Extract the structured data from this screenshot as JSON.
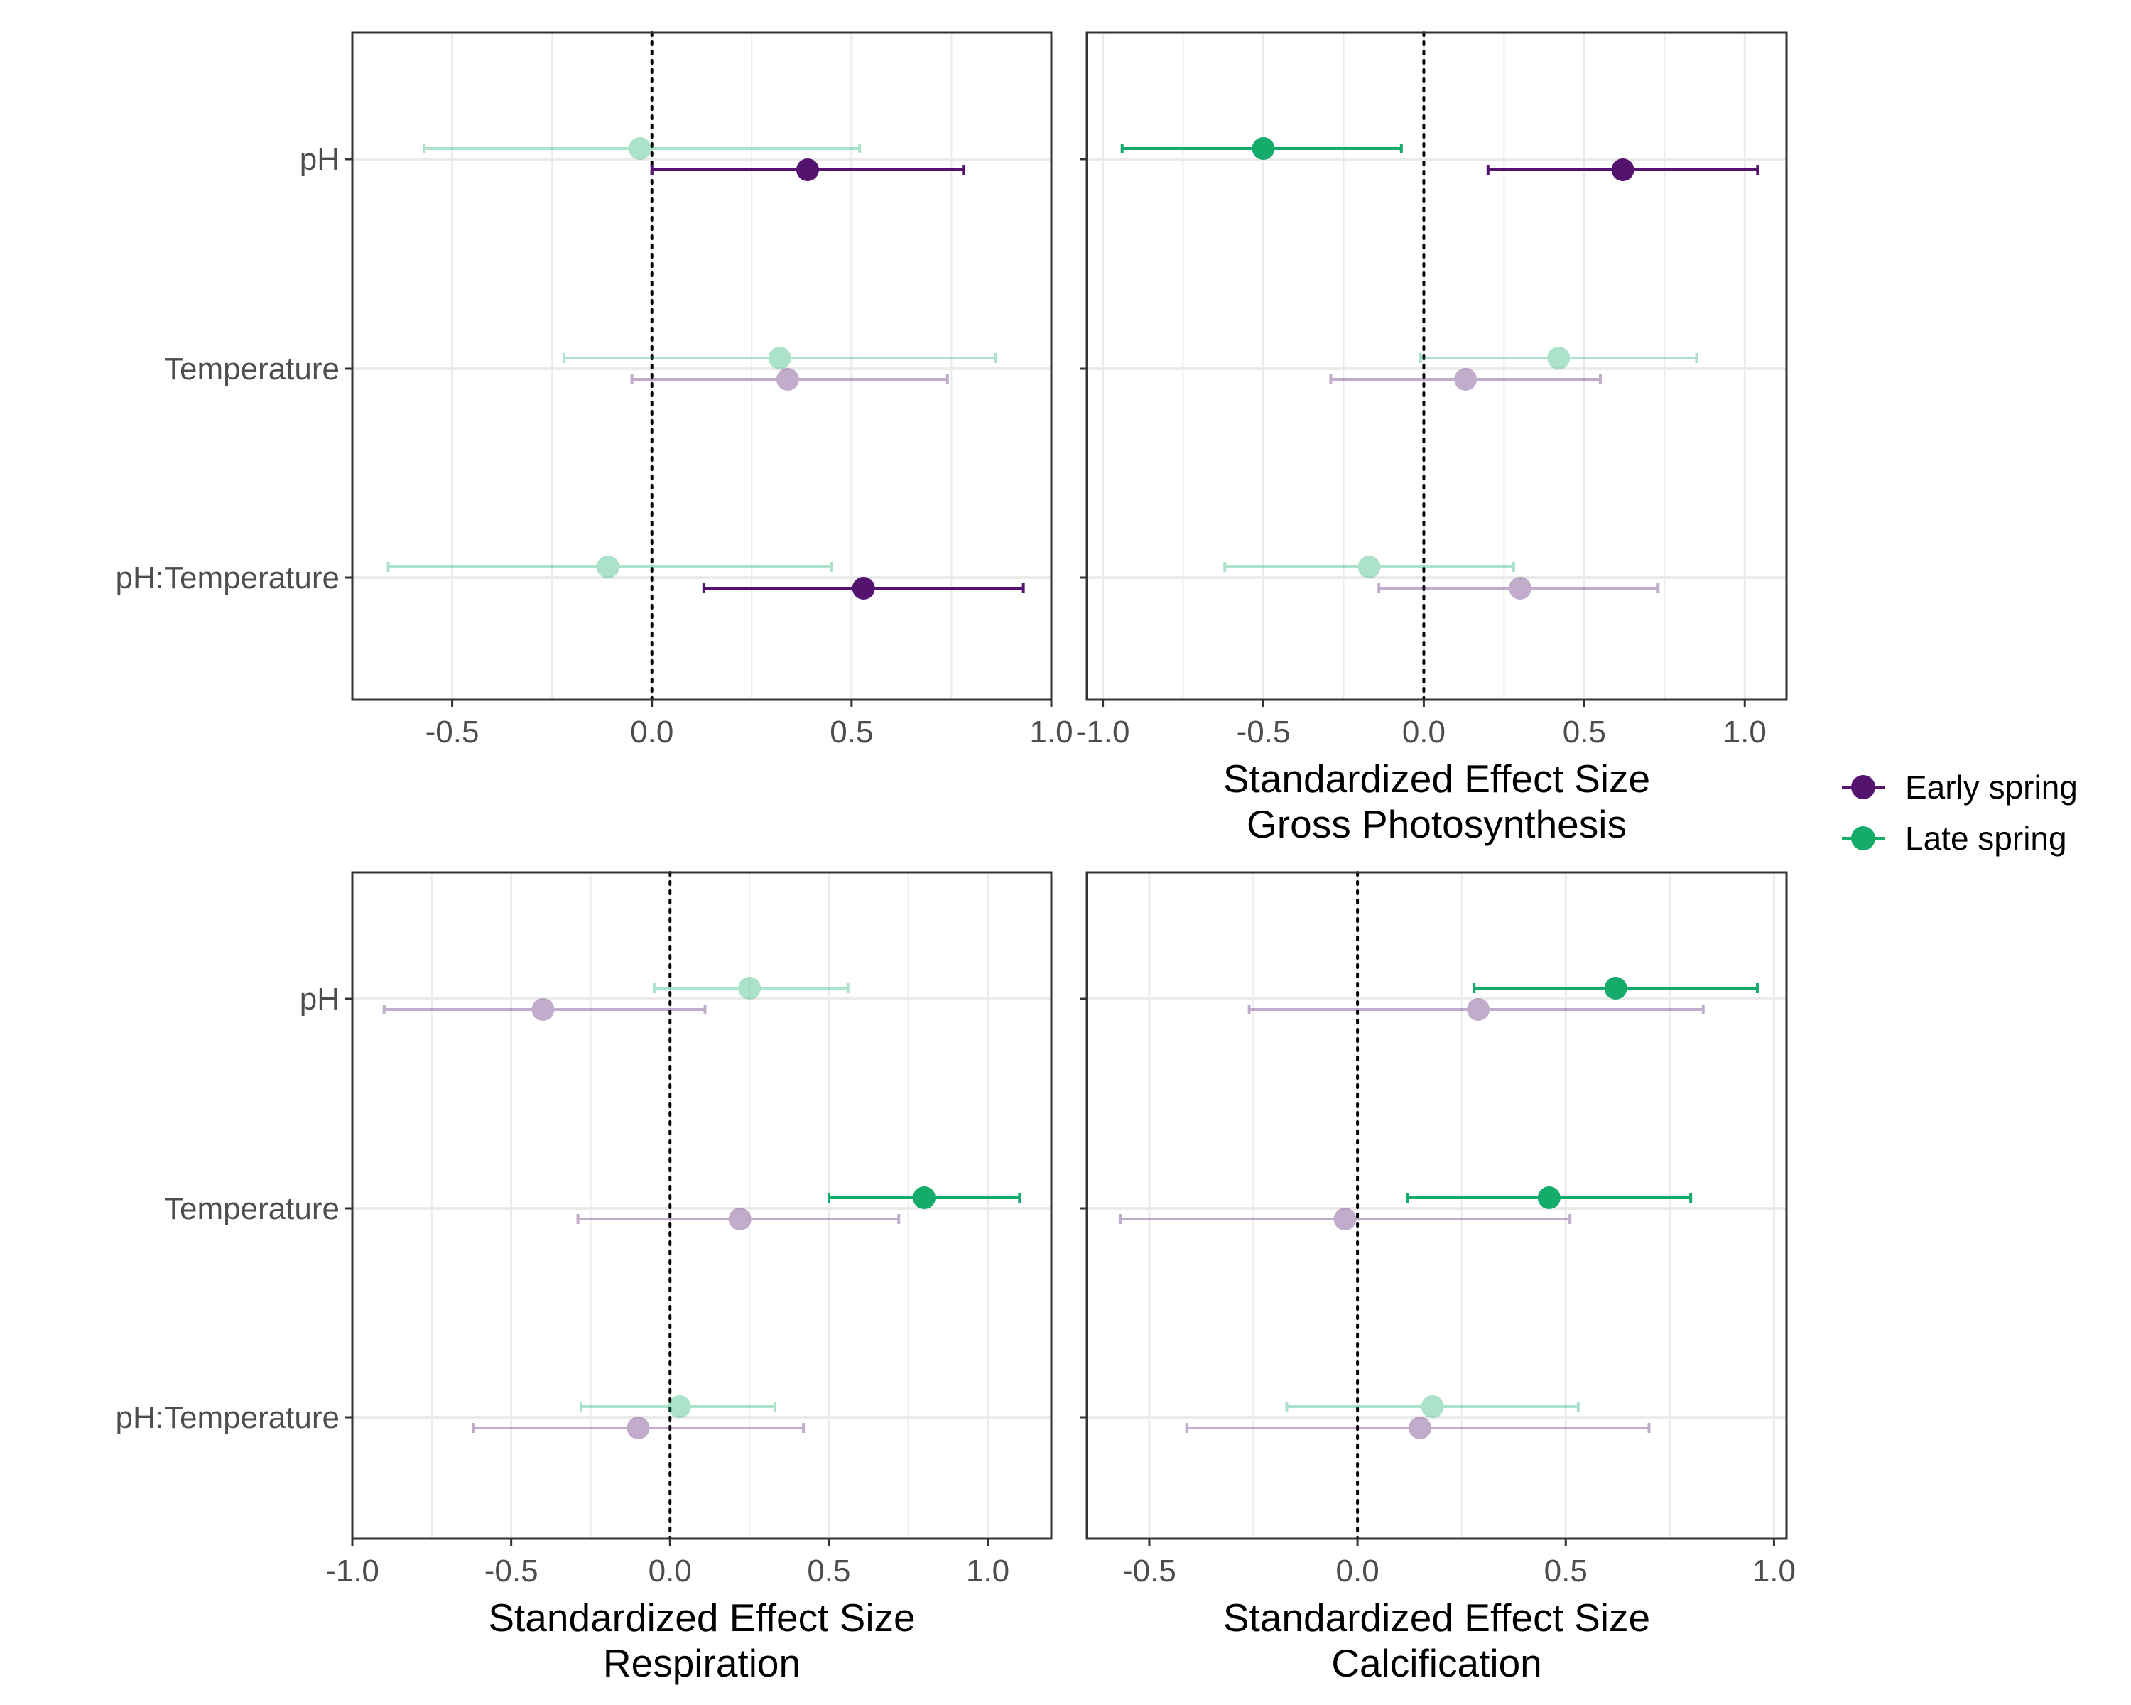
{
  "chart_data": {
    "type": "forest-plot",
    "series_names": [
      "Early spring",
      "Late spring"
    ],
    "colors": {
      "Early spring": "#54136f",
      "Late spring": "#14ab6b",
      "grid": "#ebebeb",
      "zero_line": "#000000",
      "panel_border": "#333333"
    },
    "terms": [
      "pH",
      "Temperature",
      "pH:Temperature"
    ],
    "legend": {
      "position": "right",
      "entries": [
        {
          "label": "Early spring",
          "color": "#54136f"
        },
        {
          "label": "Late spring",
          "color": "#14ab6b"
        }
      ]
    },
    "panels": [
      {
        "id": "net-photosynthesis",
        "xlabel": "",
        "xlim": [
          -0.75,
          1.0
        ],
        "xticks": [
          -0.5,
          0.0,
          0.5,
          1.0
        ],
        "xtick_labels": [
          "-0.5",
          "0.0",
          "0.5",
          "1.0"
        ],
        "points": [
          {
            "term": "pH",
            "series": "Late spring",
            "estimate": -0.03,
            "lower": -0.57,
            "upper": 0.52,
            "significant": false
          },
          {
            "term": "pH",
            "series": "Early spring",
            "estimate": 0.39,
            "lower": 0.0,
            "upper": 0.78,
            "significant": true
          },
          {
            "term": "Temperature",
            "series": "Late spring",
            "estimate": 0.32,
            "lower": -0.22,
            "upper": 0.86,
            "significant": false
          },
          {
            "term": "Temperature",
            "series": "Early spring",
            "estimate": 0.34,
            "lower": -0.05,
            "upper": 0.74,
            "significant": false
          },
          {
            "term": "pH:Temperature",
            "series": "Late spring",
            "estimate": -0.11,
            "lower": -0.66,
            "upper": 0.45,
            "significant": false
          },
          {
            "term": "pH:Temperature",
            "series": "Early spring",
            "estimate": 0.53,
            "lower": 0.13,
            "upper": 0.93,
            "significant": true
          }
        ]
      },
      {
        "id": "gross-photosynthesis",
        "xlabel": [
          "Standardized Effect Size",
          "Gross Photosynthesis"
        ],
        "xlim": [
          -1.05,
          1.13
        ],
        "xticks": [
          -1.0,
          -0.5,
          0.0,
          0.5,
          1.0
        ],
        "xtick_labels": [
          "-1.0",
          "-0.5",
          "0.0",
          "0.5",
          "1.0"
        ],
        "points": [
          {
            "term": "pH",
            "series": "Late spring",
            "estimate": -0.5,
            "lower": -0.94,
            "upper": -0.07,
            "significant": true
          },
          {
            "term": "pH",
            "series": "Early spring",
            "estimate": 0.62,
            "lower": 0.2,
            "upper": 1.04,
            "significant": true
          },
          {
            "term": "Temperature",
            "series": "Late spring",
            "estimate": 0.42,
            "lower": -0.01,
            "upper": 0.85,
            "significant": false
          },
          {
            "term": "Temperature",
            "series": "Early spring",
            "estimate": 0.13,
            "lower": -0.29,
            "upper": 0.55,
            "significant": false
          },
          {
            "term": "pH:Temperature",
            "series": "Late spring",
            "estimate": -0.17,
            "lower": -0.62,
            "upper": 0.28,
            "significant": false
          },
          {
            "term": "pH:Temperature",
            "series": "Early spring",
            "estimate": 0.3,
            "lower": -0.14,
            "upper": 0.73,
            "significant": false
          }
        ]
      },
      {
        "id": "respiration",
        "xlabel": [
          "Standardized Effect Size",
          "Respiration"
        ],
        "xlim": [
          -1.0,
          1.2
        ],
        "xticks": [
          -1.0,
          -0.5,
          0.0,
          0.5,
          1.0
        ],
        "xtick_labels": [
          "-1.0",
          "-0.5",
          "0.0",
          "0.5",
          "1.0"
        ],
        "points": [
          {
            "term": "pH",
            "series": "Late spring",
            "estimate": 0.25,
            "lower": -0.05,
            "upper": 0.56,
            "significant": false
          },
          {
            "term": "pH",
            "series": "Early spring",
            "estimate": -0.4,
            "lower": -0.9,
            "upper": 0.11,
            "significant": false
          },
          {
            "term": "Temperature",
            "series": "Late spring",
            "estimate": 0.8,
            "lower": 0.5,
            "upper": 1.1,
            "significant": true
          },
          {
            "term": "Temperature",
            "series": "Early spring",
            "estimate": 0.22,
            "lower": -0.29,
            "upper": 0.72,
            "significant": false
          },
          {
            "term": "pH:Temperature",
            "series": "Late spring",
            "estimate": 0.03,
            "lower": -0.28,
            "upper": 0.33,
            "significant": false
          },
          {
            "term": "pH:Temperature",
            "series": "Early spring",
            "estimate": -0.1,
            "lower": -0.62,
            "upper": 0.42,
            "significant": false
          }
        ]
      },
      {
        "id": "calcification",
        "xlabel": [
          "Standardized Effect Size",
          "Calcification"
        ],
        "xlim": [
          -0.65,
          1.03
        ],
        "xticks": [
          -0.5,
          0.0,
          0.5,
          1.0
        ],
        "xtick_labels": [
          "-0.5",
          "0.0",
          "0.5",
          "1.0"
        ],
        "points": [
          {
            "term": "pH",
            "series": "Late spring",
            "estimate": 0.62,
            "lower": 0.28,
            "upper": 0.96,
            "significant": true
          },
          {
            "term": "pH",
            "series": "Early spring",
            "estimate": 0.29,
            "lower": -0.26,
            "upper": 0.83,
            "significant": false
          },
          {
            "term": "Temperature",
            "series": "Late spring",
            "estimate": 0.46,
            "lower": 0.12,
            "upper": 0.8,
            "significant": true
          },
          {
            "term": "Temperature",
            "series": "Early spring",
            "estimate": -0.03,
            "lower": -0.57,
            "upper": 0.51,
            "significant": false
          },
          {
            "term": "pH:Temperature",
            "series": "Late spring",
            "estimate": 0.18,
            "lower": -0.17,
            "upper": 0.53,
            "significant": false
          },
          {
            "term": "pH:Temperature",
            "series": "Early spring",
            "estimate": 0.15,
            "lower": -0.41,
            "upper": 0.7,
            "significant": false
          }
        ]
      }
    ]
  }
}
